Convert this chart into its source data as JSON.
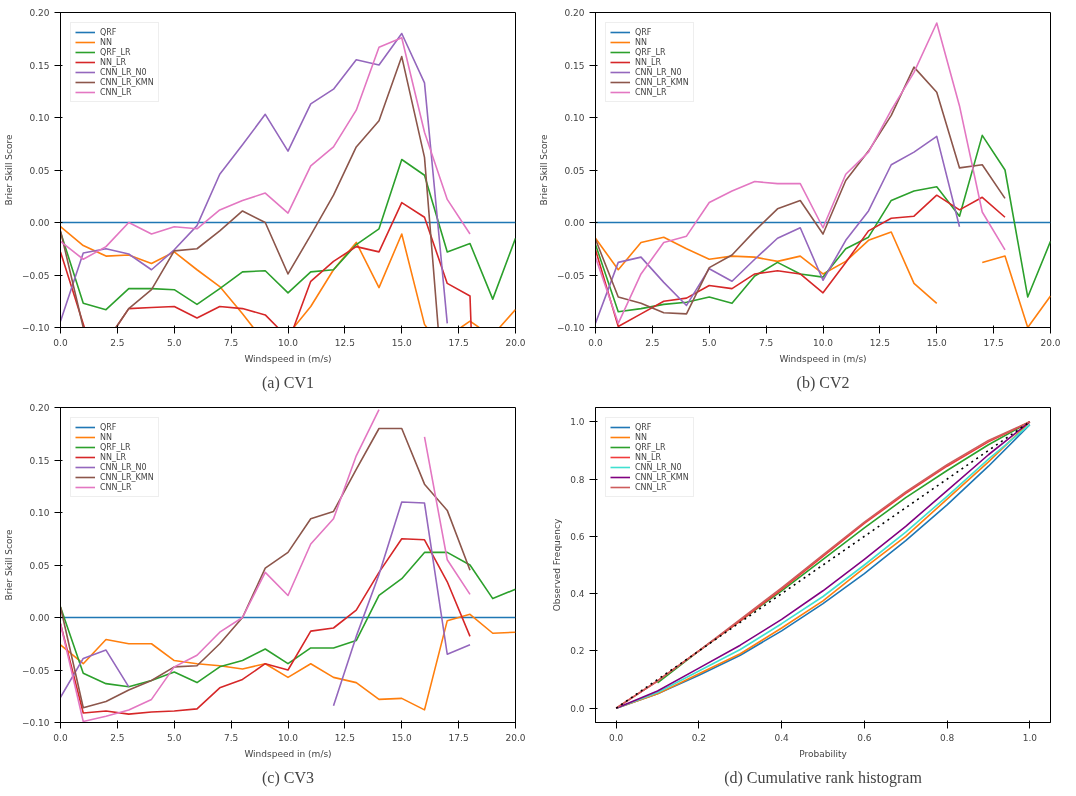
{
  "chart_data": [
    {
      "type": "line",
      "title": "(a) CV1",
      "xlabel": "Windspeed in (m/s)",
      "ylabel": "Brier Skill Score",
      "legend": "top left",
      "marker": "none",
      "line_style": "solid",
      "x": [
        0,
        1,
        2,
        3,
        4,
        5,
        6,
        7,
        8,
        9,
        10,
        11,
        12,
        13,
        14,
        15,
        16,
        17,
        18,
        19,
        20
      ],
      "xlim": [
        0,
        20
      ],
      "xticks": [
        {
          "value": 0,
          "label": "0.0"
        },
        {
          "value": 2.5,
          "label": "2.5"
        },
        {
          "value": 5,
          "label": "5.0"
        },
        {
          "value": 7.5,
          "label": "7.5"
        },
        {
          "value": 10,
          "label": "10.0"
        },
        {
          "value": 12.5,
          "label": "12.5"
        },
        {
          "value": 15,
          "label": "15.0"
        },
        {
          "value": 17.5,
          "label": "17.5"
        },
        {
          "value": 20,
          "label": "20.0"
        }
      ],
      "ylim": [
        -0.1,
        0.2
      ],
      "yticks": [
        {
          "value": -0.1,
          "label": "−0.10"
        },
        {
          "value": -0.05,
          "label": "−0.05"
        },
        {
          "value": 0,
          "label": "0.00"
        },
        {
          "value": 0.05,
          "label": "0.05"
        },
        {
          "value": 0.1,
          "label": "0.10"
        },
        {
          "value": 0.15,
          "label": "0.15"
        },
        {
          "value": 0.2,
          "label": "0.20"
        }
      ],
      "series": [
        {
          "name": "QRF",
          "color": "#1f77b4",
          "values": [
            0,
            0,
            0,
            0,
            0,
            0,
            0,
            0,
            0,
            0,
            0,
            0,
            0,
            0,
            0,
            0,
            0,
            0,
            0,
            0,
            0
          ]
        },
        {
          "name": "NN",
          "color": "#ff7f0e",
          "x": [
            0,
            1,
            2,
            3,
            4,
            5,
            6,
            7,
            8,
            8.47,
            9,
            10.25,
            11,
            12,
            13,
            14,
            15,
            16,
            16.1,
            17,
            17.6,
            18,
            18.4,
            19,
            19.3,
            20
          ],
          "values": [
            -0.004,
            -0.022,
            -0.032,
            -0.031,
            -0.039,
            -0.028,
            -0.045,
            -0.061,
            -0.087,
            -0.1,
            null,
            -0.1,
            -0.08,
            -0.045,
            -0.019,
            -0.062,
            -0.011,
            -0.097,
            -0.1,
            null,
            -0.1,
            -0.094,
            -0.1,
            null,
            -0.1,
            -0.083
          ]
        },
        {
          "name": "QRF_LR",
          "color": "#2ca02c",
          "values": [
            -0.009,
            -0.077,
            -0.083,
            -0.063,
            -0.063,
            -0.064,
            -0.078,
            -0.063,
            -0.047,
            -0.046,
            -0.067,
            -0.047,
            -0.045,
            -0.021,
            -0.006,
            0.06,
            0.045,
            -0.028,
            -0.02,
            -0.073,
            -0.015
          ]
        },
        {
          "name": "NN_LR",
          "color": "#d62728",
          "x": [
            0,
            1.05,
            1.5,
            2.44,
            3,
            4,
            5,
            6,
            7,
            8,
            9,
            9.55,
            10,
            10.25,
            11,
            12,
            13,
            14,
            15,
            16,
            17,
            18,
            18.05
          ],
          "values": [
            -0.028,
            -0.1,
            null,
            -0.1,
            -0.082,
            -0.081,
            -0.08,
            -0.091,
            -0.08,
            -0.082,
            -0.088,
            -0.1,
            null,
            -0.1,
            -0.056,
            -0.037,
            -0.023,
            -0.028,
            0.019,
            0.005,
            -0.058,
            -0.07,
            -0.1
          ]
        },
        {
          "name": "CNN_LR_N0",
          "color": "#9467bd",
          "values": [
            -0.094,
            -0.029,
            -0.025,
            -0.03,
            -0.045,
            -0.026,
            -0.003,
            0.046,
            0.074,
            0.103,
            0.068,
            0.113,
            0.127,
            0.155,
            0.15,
            0.18,
            0.133,
            -0.096,
            null,
            null,
            null
          ]
        },
        {
          "name": "CNN_LR_KMN",
          "color": "#8c564b",
          "x": [
            0,
            1,
            1.5,
            2.44,
            3,
            4,
            5,
            6,
            7,
            8,
            9,
            10,
            11,
            12,
            13,
            14,
            15,
            16,
            16.6
          ],
          "values": [
            -0.008,
            -0.1,
            null,
            -0.1,
            -0.082,
            -0.064,
            -0.027,
            -0.025,
            -0.008,
            0.011,
            0.0,
            -0.049,
            -0.012,
            0.026,
            0.072,
            0.097,
            0.158,
            0.062,
            -0.1
          ]
        },
        {
          "name": "CNN_LR",
          "color": "#e377c2",
          "values": [
            -0.018,
            -0.035,
            -0.023,
            0.0,
            -0.011,
            -0.004,
            -0.006,
            0.012,
            0.021,
            0.028,
            0.009,
            0.054,
            0.072,
            0.107,
            0.167,
            0.176,
            0.086,
            0.022,
            -0.011,
            null,
            null
          ]
        }
      ]
    },
    {
      "type": "line",
      "title": "(b) CV2",
      "xlabel": "Windspeed in (m/s)",
      "ylabel": "Brier Skill Score",
      "legend": "top left",
      "marker": "none",
      "line_style": "solid",
      "x": [
        0,
        1,
        2,
        3,
        4,
        5,
        6,
        7,
        8,
        9,
        10,
        11,
        12,
        13,
        14,
        15,
        16,
        17,
        18,
        19,
        20
      ],
      "xlim": [
        0,
        20
      ],
      "xticks": [
        {
          "value": 0,
          "label": "0.0"
        },
        {
          "value": 2.5,
          "label": "2.5"
        },
        {
          "value": 5,
          "label": "5.0"
        },
        {
          "value": 7.5,
          "label": "7.5"
        },
        {
          "value": 10,
          "label": "10.0"
        },
        {
          "value": 12.5,
          "label": "12.5"
        },
        {
          "value": 15,
          "label": "15.0"
        },
        {
          "value": 17.5,
          "label": "17.5"
        },
        {
          "value": 20,
          "label": "20.0"
        }
      ],
      "ylim": [
        -0.1,
        0.2
      ],
      "yticks": [
        {
          "value": -0.1,
          "label": "−0.10"
        },
        {
          "value": -0.05,
          "label": "−0.05"
        },
        {
          "value": 0,
          "label": "0.00"
        },
        {
          "value": 0.05,
          "label": "0.05"
        },
        {
          "value": 0.1,
          "label": "0.10"
        },
        {
          "value": 0.15,
          "label": "0.15"
        },
        {
          "value": 0.2,
          "label": "0.20"
        }
      ],
      "series": [
        {
          "name": "QRF",
          "color": "#1f77b4",
          "values": [
            0,
            0,
            0,
            0,
            0,
            0,
            0,
            0,
            0,
            0,
            0,
            0,
            0,
            0,
            0,
            0,
            0,
            0,
            0,
            0,
            0
          ]
        },
        {
          "name": "NN",
          "color": "#ff7f0e",
          "values": [
            -0.015,
            -0.045,
            -0.019,
            -0.014,
            -0.025,
            -0.035,
            -0.032,
            -0.033,
            -0.037,
            -0.032,
            -0.049,
            -0.037,
            -0.017,
            -0.009,
            -0.058,
            -0.077,
            null,
            -0.038,
            -0.032,
            -0.1,
            -0.07
          ]
        },
        {
          "name": "QRF_LR",
          "color": "#2ca02c",
          "values": [
            -0.021,
            -0.085,
            -0.082,
            -0.078,
            -0.076,
            -0.071,
            -0.077,
            -0.051,
            -0.038,
            -0.049,
            -0.052,
            -0.025,
            -0.014,
            0.021,
            0.03,
            0.034,
            0.006,
            0.083,
            0.05,
            -0.071,
            -0.018
          ]
        },
        {
          "name": "NN_LR",
          "color": "#d62728",
          "values": [
            -0.026,
            -0.099,
            -0.087,
            -0.075,
            -0.072,
            -0.06,
            -0.063,
            -0.049,
            -0.046,
            -0.049,
            -0.067,
            -0.038,
            -0.008,
            0.004,
            0.006,
            0.026,
            0.012,
            0.024,
            0.005,
            null,
            null
          ]
        },
        {
          "name": "CNN_LR_N0",
          "color": "#9467bd",
          "values": [
            -0.096,
            -0.038,
            -0.033,
            -0.057,
            -0.079,
            -0.044,
            -0.056,
            -0.035,
            -0.015,
            -0.005,
            -0.055,
            -0.017,
            0.011,
            0.055,
            0.067,
            0.082,
            -0.004,
            null,
            null,
            null,
            null
          ]
        },
        {
          "name": "CNN_LR_KMN",
          "color": "#8c564b",
          "values": [
            -0.016,
            -0.071,
            -0.077,
            -0.086,
            -0.087,
            -0.043,
            -0.031,
            -0.008,
            0.013,
            0.021,
            -0.011,
            0.04,
            0.068,
            0.102,
            0.148,
            0.124,
            0.052,
            0.055,
            0.023,
            null,
            null
          ]
        },
        {
          "name": "CNN_LR",
          "color": "#e377c2",
          "values": [
            -0.033,
            -0.096,
            -0.049,
            -0.019,
            -0.013,
            0.019,
            0.03,
            0.039,
            0.037,
            0.037,
            -0.005,
            0.046,
            0.067,
            0.107,
            0.143,
            0.19,
            0.111,
            0.01,
            -0.026,
            null,
            null
          ]
        }
      ]
    },
    {
      "type": "line",
      "title": "(c) CV3",
      "xlabel": "Windspeed in (m/s)",
      "ylabel": "Brier Skill Score",
      "legend": "top left",
      "marker": "none",
      "line_style": "solid",
      "x": [
        0,
        1,
        2,
        3,
        4,
        5,
        6,
        7,
        8,
        9,
        10,
        11,
        12,
        13,
        14,
        15,
        16,
        17,
        18,
        19,
        20
      ],
      "xlim": [
        0,
        20
      ],
      "xticks": [
        {
          "value": 0,
          "label": "0.0"
        },
        {
          "value": 2.5,
          "label": "2.5"
        },
        {
          "value": 5,
          "label": "5.0"
        },
        {
          "value": 7.5,
          "label": "7.5"
        },
        {
          "value": 10,
          "label": "10.0"
        },
        {
          "value": 12.5,
          "label": "12.5"
        },
        {
          "value": 15,
          "label": "15.0"
        },
        {
          "value": 17.5,
          "label": "17.5"
        },
        {
          "value": 20,
          "label": "20.0"
        }
      ],
      "ylim": [
        -0.1,
        0.2
      ],
      "yticks": [
        {
          "value": -0.1,
          "label": "−0.10"
        },
        {
          "value": -0.05,
          "label": "−0.05"
        },
        {
          "value": 0,
          "label": "0.00"
        },
        {
          "value": 0.05,
          "label": "0.05"
        },
        {
          "value": 0.1,
          "label": "0.10"
        },
        {
          "value": 0.15,
          "label": "0.15"
        },
        {
          "value": 0.2,
          "label": "0.20"
        }
      ],
      "series": [
        {
          "name": "QRF",
          "color": "#1f77b4",
          "values": [
            0,
            0,
            0,
            0,
            0,
            0,
            0,
            0,
            0,
            0,
            0,
            0,
            0,
            0,
            0,
            0,
            0,
            0,
            0,
            0,
            0
          ]
        },
        {
          "name": "NN",
          "color": "#ff7f0e",
          "values": [
            -0.026,
            -0.044,
            -0.021,
            -0.025,
            -0.025,
            -0.041,
            -0.044,
            -0.046,
            -0.049,
            -0.044,
            -0.057,
            -0.044,
            -0.057,
            -0.062,
            -0.078,
            -0.077,
            -0.088,
            -0.003,
            0.003,
            -0.015,
            -0.014
          ]
        },
        {
          "name": "QRF_LR",
          "color": "#2ca02c",
          "values": [
            0.01,
            -0.053,
            -0.063,
            -0.066,
            -0.06,
            -0.052,
            -0.062,
            -0.047,
            -0.041,
            -0.03,
            -0.044,
            -0.029,
            -0.029,
            -0.022,
            0.021,
            0.037,
            0.062,
            0.062,
            0.05,
            0.018,
            0.027
          ]
        },
        {
          "name": "NN_LR",
          "color": "#d62728",
          "values": [
            -0.006,
            -0.091,
            -0.089,
            -0.092,
            -0.09,
            -0.089,
            -0.087,
            -0.067,
            -0.059,
            -0.044,
            -0.05,
            -0.013,
            -0.01,
            0.007,
            0.043,
            0.075,
            0.074,
            0.034,
            -0.018,
            null,
            null
          ]
        },
        {
          "name": "CNN_LR_N0",
          "color": "#9467bd",
          "values": [
            -0.076,
            -0.039,
            -0.031,
            -0.066,
            null,
            null,
            null,
            null,
            null,
            null,
            null,
            null,
            -0.084,
            -0.018,
            0.041,
            0.11,
            0.109,
            -0.035,
            -0.026,
            null,
            null
          ]
        },
        {
          "name": "CNN_LR_KMN",
          "color": "#8c564b",
          "values": [
            0.01,
            -0.086,
            -0.08,
            -0.069,
            -0.06,
            -0.047,
            -0.046,
            -0.025,
            0.0,
            0.047,
            0.062,
            0.094,
            0.101,
            0.141,
            0.18,
            0.18,
            0.127,
            0.102,
            0.045,
            null,
            null
          ]
        },
        {
          "name": "CNN_LR",
          "color": "#e377c2",
          "values": [
            -0.006,
            -0.099,
            -0.094,
            -0.088,
            -0.078,
            -0.047,
            -0.036,
            -0.014,
            0.0,
            0.043,
            0.021,
            0.07,
            0.094,
            0.154,
            0.198,
            null,
            0.172,
            0.055,
            0.022,
            null,
            null
          ]
        }
      ]
    },
    {
      "type": "line",
      "title": "(d) Cumulative rank histogram",
      "xlabel": "Probability",
      "ylabel": "Observed Frequency",
      "legend": "top left",
      "marker": "none",
      "line_style": "solid",
      "x": [
        0,
        0.1,
        0.2,
        0.3,
        0.4,
        0.5,
        0.6,
        0.7,
        0.8,
        0.9,
        1.0
      ],
      "xlim": [
        -0.05,
        1.05
      ],
      "xticks": [
        {
          "value": 0,
          "label": "0.0"
        },
        {
          "value": 0.2,
          "label": "0.2"
        },
        {
          "value": 0.4,
          "label": "0.4"
        },
        {
          "value": 0.6,
          "label": "0.6"
        },
        {
          "value": 0.8,
          "label": "0.8"
        },
        {
          "value": 1,
          "label": "1.0"
        }
      ],
      "ylim": [
        -0.05,
        1.05
      ],
      "yticks": [
        {
          "value": 0,
          "label": "0.0"
        },
        {
          "value": 0.2,
          "label": "0.2"
        },
        {
          "value": 0.4,
          "label": "0.4"
        },
        {
          "value": 0.6,
          "label": "0.6"
        },
        {
          "value": 0.8,
          "label": "0.8"
        },
        {
          "value": 1,
          "label": "1.0"
        }
      ],
      "series": [
        {
          "name": "QRF",
          "color": "#1f77b4",
          "values": [
            0,
            0.05,
            0.115,
            0.185,
            0.27,
            0.365,
            0.47,
            0.585,
            0.71,
            0.845,
            0.99
          ]
        },
        {
          "name": "NN",
          "color": "#ff7f0e",
          "values": [
            0,
            0.05,
            0.12,
            0.19,
            0.28,
            0.375,
            0.49,
            0.6,
            0.73,
            0.86,
            1.0
          ]
        },
        {
          "name": "QRF_LR",
          "color": "#2ca02c",
          "values": [
            null,
            0.088,
            0.2,
            0.305,
            0.41,
            0.52,
            0.63,
            0.735,
            0.83,
            0.92,
            1.0
          ]
        },
        {
          "name": "NN_LR",
          "color": "#f03c3c",
          "values": [
            0,
            0.095,
            0.2,
            0.305,
            0.415,
            0.53,
            0.645,
            0.75,
            0.845,
            0.93,
            1.0
          ]
        },
        {
          "name": "CNN_LR_N0",
          "color": "#40e0d0",
          "values": [
            0,
            0.055,
            0.13,
            0.205,
            0.295,
            0.39,
            0.5,
            0.615,
            0.74,
            0.87,
            0.99
          ]
        },
        {
          "name": "CNN_LR_KMN",
          "color": "#800080",
          "values": [
            0,
            0.06,
            0.14,
            0.22,
            0.31,
            0.41,
            0.52,
            0.635,
            0.76,
            0.885,
            1.0
          ]
        },
        {
          "name": "CNN_LR",
          "color": "#cd5c5c",
          "values": [
            0,
            0.095,
            0.2,
            0.31,
            0.42,
            0.535,
            0.65,
            0.755,
            0.85,
            0.935,
            1.0
          ]
        },
        {
          "type": "line",
          "color": "#000000",
          "line_style": "dotted",
          "x": [
            0,
            1
          ],
          "values": [
            0,
            1
          ]
        }
      ]
    }
  ]
}
